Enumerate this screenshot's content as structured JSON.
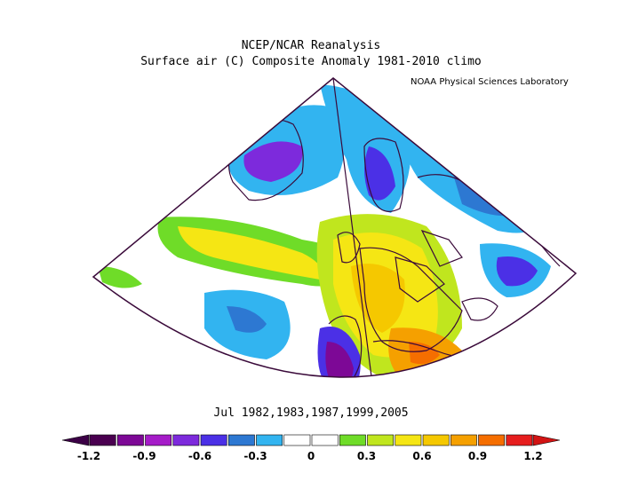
{
  "title": "NCEP/NCAR Reanalysis",
  "subtitle": "Surface air (C) Composite Anomaly 1981-2010 climo",
  "credit": "NOAA Physical Sciences Laboratory",
  "dates_label": "Jul 1982,1983,1987,1999,2005",
  "colorbar": {
    "colors": [
      "#4a0050",
      "#7d0896",
      "#a51cc8",
      "#7d2adc",
      "#4b30e6",
      "#2d78d2",
      "#32b4f0",
      "#ffffff",
      "#ffffff",
      "#6fdc28",
      "#c0e61e",
      "#f5e614",
      "#f5c800",
      "#f5a000",
      "#f56e00",
      "#e61e1e"
    ],
    "labels": [
      "-1.2",
      "-0.9",
      "-0.6",
      "-0.3",
      "0",
      "0.3",
      "0.6",
      "0.9",
      "1.2"
    ],
    "low_arrow_color": "#3c0046",
    "high_arrow_color": "#d21414"
  },
  "map": {
    "projection": "conic sector",
    "region": "North Atlantic / Europe",
    "anomaly_regions": [
      {
        "name": "greenland-cold",
        "color": "#7d2adc"
      },
      {
        "name": "scandinavia-cold",
        "color": "#4b30e6"
      },
      {
        "name": "russia-cold",
        "color": "#4b30e6"
      },
      {
        "name": "iberia-cold",
        "color": "#7d0896"
      },
      {
        "name": "mid-atlantic-cold",
        "color": "#2d78d2"
      },
      {
        "name": "atlantic-warm-band",
        "color": "#f5e614"
      },
      {
        "name": "europe-warm",
        "color": "#f5c800"
      },
      {
        "name": "north-africa-warm",
        "color": "#f5a000"
      }
    ]
  }
}
